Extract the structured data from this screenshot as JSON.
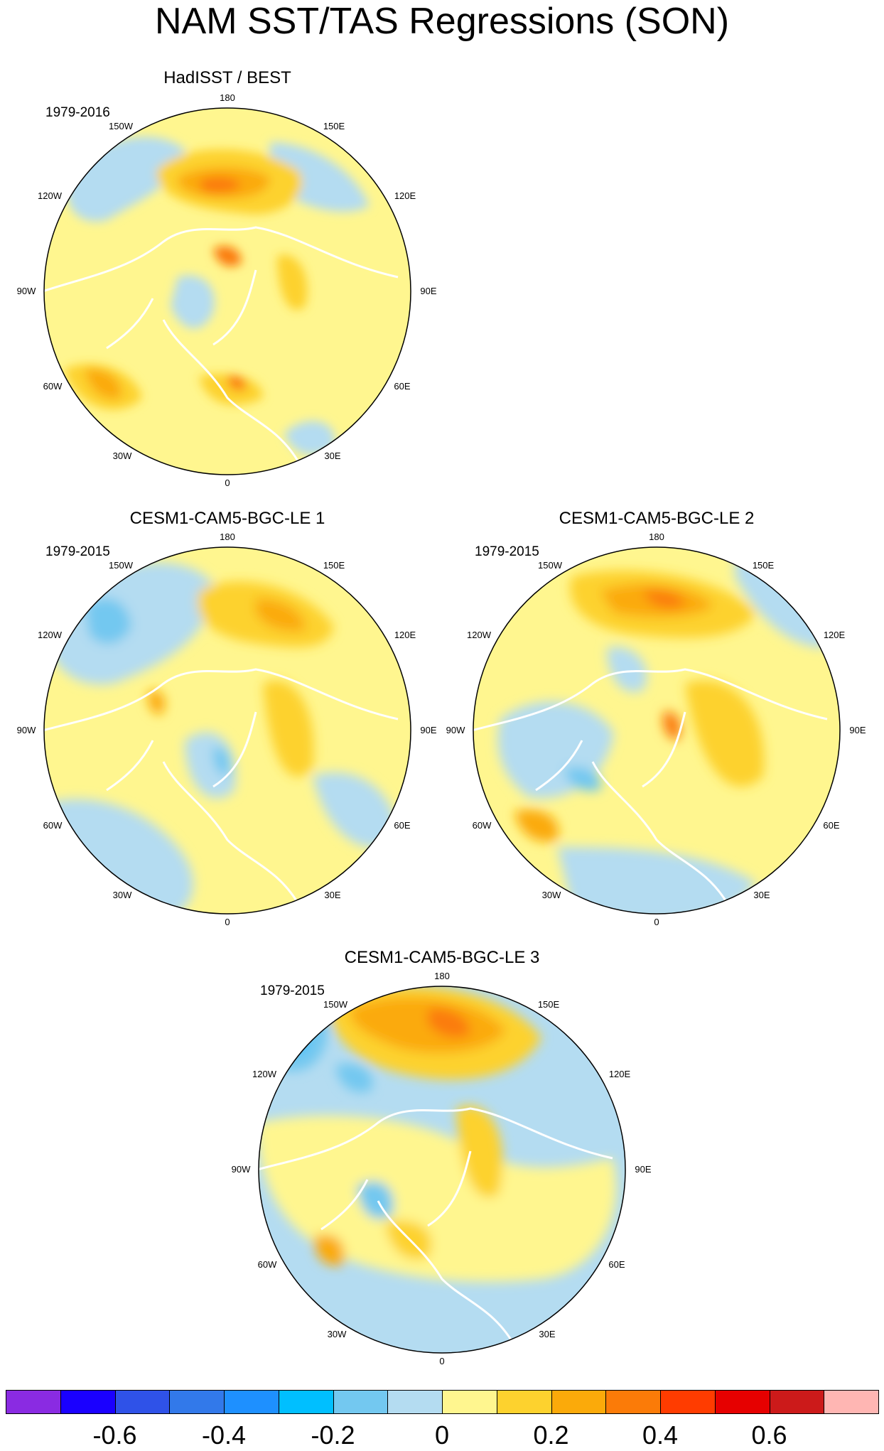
{
  "title": "NAM SST/TAS Regressions (SON)",
  "panels": [
    {
      "title": "HadISST / BEST",
      "period": "1979-2016"
    },
    {
      "title": "CESM1-CAM5-BGC-LE 1",
      "period": "1979-2015"
    },
    {
      "title": "CESM1-CAM5-BGC-LE 2",
      "period": "1979-2015"
    },
    {
      "title": "CESM1-CAM5-BGC-LE 3",
      "period": "1979-2015"
    }
  ],
  "longitude_labels": [
    "180",
    "150E",
    "120E",
    "90E",
    "60E",
    "30E",
    "0",
    "30W",
    "60W",
    "90W",
    "120W",
    "150W"
  ],
  "colorbar": {
    "colors": [
      "#8a2be2",
      "#1a00ff",
      "#2f52e8",
      "#3279ea",
      "#1e90ff",
      "#00bfff",
      "#73c8f0",
      "#b4dcf1",
      "#fff68f",
      "#fdd22e",
      "#fbaa0a",
      "#fb7b08",
      "#ff3c00",
      "#e60000",
      "#cc1a1a",
      "#ffb6b3"
    ],
    "tick_labels": [
      "-0.6",
      "-0.4",
      "-0.2",
      "0",
      "0.2",
      "0.4",
      "0.6"
    ]
  }
}
